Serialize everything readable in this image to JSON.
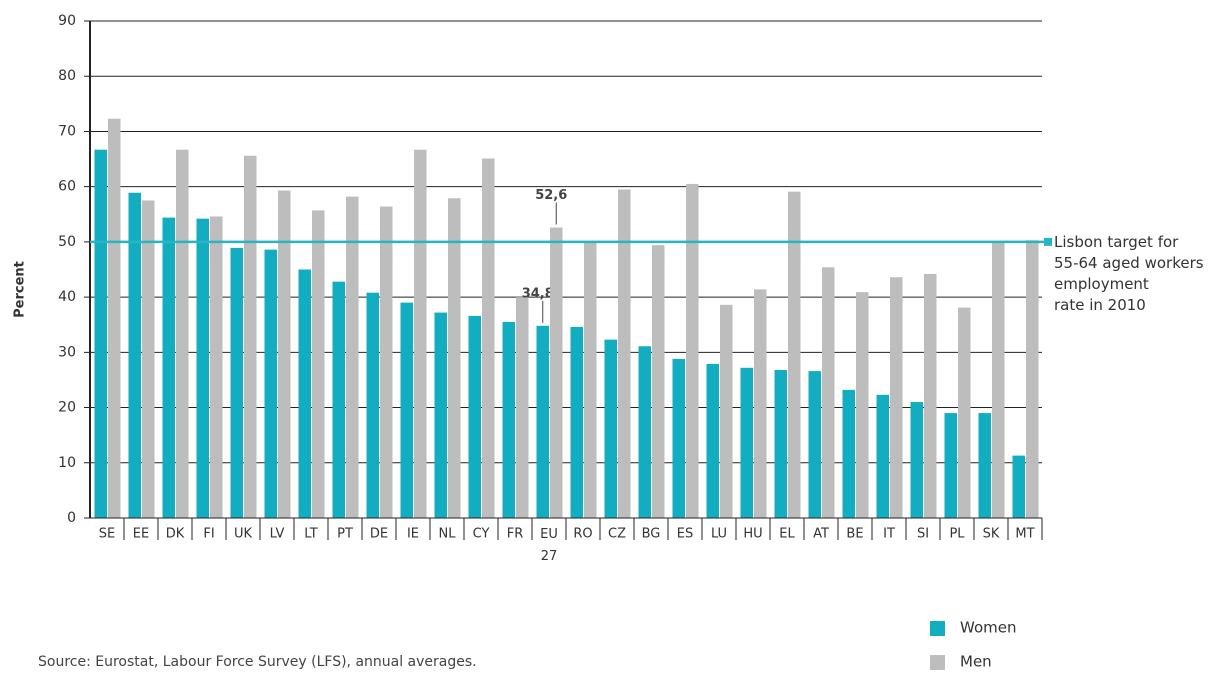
{
  "chart_data": {
    "type": "bar",
    "y_label": "Percent",
    "source": "Source: Eurostat, Labour Force Survey (LFS), annual averages.",
    "categories": [
      "SE",
      "EE",
      "DK",
      "FI",
      "UK",
      "LV",
      "LT",
      "PT",
      "DE",
      "IE",
      "NL",
      "CY",
      "FR",
      "EU\n27",
      "RO",
      "CZ",
      "BG",
      "ES",
      "LU",
      "HU",
      "EL",
      "AT",
      "BE",
      "IT",
      "SI",
      "PL",
      "SK",
      "MT"
    ],
    "series": [
      {
        "name": "Women",
        "color": "#13adc2",
        "values": [
          66.7,
          58.9,
          54.4,
          54.2,
          48.9,
          48.6,
          45.0,
          42.8,
          40.8,
          39.0,
          37.2,
          36.6,
          35.5,
          34.8,
          34.6,
          32.3,
          31.1,
          28.8,
          27.9,
          27.2,
          26.8,
          26.6,
          23.2,
          22.3,
          21.0,
          19.0,
          19.0,
          11.3
        ],
        "value_labels": [
          null,
          null,
          null,
          null,
          null,
          null,
          null,
          null,
          null,
          null,
          null,
          null,
          null,
          "34,8",
          null,
          null,
          null,
          null,
          null,
          null,
          null,
          null,
          null,
          null,
          null,
          null,
          null,
          null
        ]
      },
      {
        "name": "Men",
        "color": "#bdbdbd",
        "values": [
          72.3,
          57.5,
          66.7,
          54.6,
          65.6,
          59.3,
          55.7,
          58.2,
          56.4,
          66.7,
          57.9,
          65.1,
          40.0,
          52.6,
          50.0,
          59.5,
          49.4,
          60.5,
          38.6,
          41.4,
          59.1,
          45.4,
          40.9,
          43.6,
          44.2,
          38.1,
          49.9,
          50.3
        ],
        "value_labels": [
          null,
          null,
          null,
          null,
          null,
          null,
          null,
          null,
          null,
          null,
          null,
          null,
          null,
          "52,6",
          null,
          null,
          null,
          null,
          null,
          null,
          null,
          null,
          null,
          null,
          null,
          null,
          null,
          null
        ]
      }
    ],
    "target": {
      "value": 50,
      "label": "Lisbon target for\n55-64 aged workers\nemployment\nrate in 2010",
      "color": "#2ab3c2"
    },
    "ylim": [
      0,
      90
    ],
    "yticks": [
      0,
      10,
      20,
      30,
      40,
      50,
      60,
      70,
      80,
      90
    ],
    "grid": true
  }
}
